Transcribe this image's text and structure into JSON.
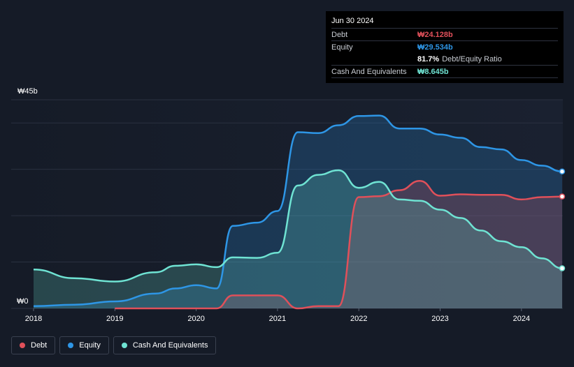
{
  "tooltip": {
    "date": "Jun 30 2024",
    "rows": [
      {
        "label": "Debt",
        "value": "₩24.128b",
        "color": "#e0505a"
      },
      {
        "label": "Equity",
        "value": "₩29.534b",
        "color": "#2e96e6"
      },
      {
        "label": "",
        "value": "81.7%",
        "extra": "Debt/Equity Ratio",
        "color": "#ffffff"
      },
      {
        "label": "Cash And Equivalents",
        "value": "₩8.645b",
        "color": "#6fe3d3"
      }
    ]
  },
  "legend": [
    {
      "label": "Debt",
      "color": "#e0505a"
    },
    {
      "label": "Equity",
      "color": "#2e96e6"
    },
    {
      "label": "Cash And Equivalents",
      "color": "#6fe3d3"
    }
  ],
  "chart_data": {
    "type": "area",
    "y_top_label": "₩45b",
    "y_bottom_label": "₩0",
    "ylim": [
      0,
      45
    ],
    "xlim": [
      2018.0,
      2024.5
    ],
    "x_ticks": [
      "2018",
      "2019",
      "2020",
      "2021",
      "2022",
      "2023",
      "2024"
    ],
    "grid": true,
    "series": [
      {
        "name": "Debt",
        "color": "#e0505a",
        "points": [
          [
            2019.0,
            0
          ],
          [
            2020.25,
            0
          ],
          [
            2020.45,
            2.8
          ],
          [
            2020.75,
            2.8
          ],
          [
            2021.0,
            2.8
          ],
          [
            2021.25,
            0
          ],
          [
            2021.5,
            0.5
          ],
          [
            2021.75,
            0.5
          ],
          [
            2022.0,
            24.0
          ],
          [
            2022.25,
            24.2
          ],
          [
            2022.5,
            25.5
          ],
          [
            2022.75,
            27.5
          ],
          [
            2023.0,
            24.3
          ],
          [
            2023.25,
            24.6
          ],
          [
            2023.5,
            24.5
          ],
          [
            2023.75,
            24.5
          ],
          [
            2024.0,
            23.5
          ],
          [
            2024.25,
            24.0
          ],
          [
            2024.5,
            24.128
          ]
        ]
      },
      {
        "name": "Equity",
        "color": "#2e96e6",
        "points": [
          [
            2018.0,
            0.5
          ],
          [
            2018.5,
            0.8
          ],
          [
            2019.0,
            1.5
          ],
          [
            2019.5,
            3.2
          ],
          [
            2019.75,
            4.3
          ],
          [
            2020.0,
            5.0
          ],
          [
            2020.25,
            4.3
          ],
          [
            2020.45,
            17.8
          ],
          [
            2020.75,
            18.5
          ],
          [
            2021.0,
            21.0
          ],
          [
            2021.25,
            38.0
          ],
          [
            2021.5,
            37.8
          ],
          [
            2021.75,
            39.5
          ],
          [
            2022.0,
            41.5
          ],
          [
            2022.25,
            41.6
          ],
          [
            2022.5,
            38.8
          ],
          [
            2022.75,
            38.8
          ],
          [
            2023.0,
            37.5
          ],
          [
            2023.25,
            36.8
          ],
          [
            2023.5,
            34.8
          ],
          [
            2023.75,
            34.3
          ],
          [
            2024.0,
            32.0
          ],
          [
            2024.25,
            30.8
          ],
          [
            2024.5,
            29.534
          ]
        ]
      },
      {
        "name": "Cash And Equivalents",
        "color": "#6fe3d3",
        "points": [
          [
            2018.0,
            8.4
          ],
          [
            2018.5,
            6.5
          ],
          [
            2019.0,
            5.8
          ],
          [
            2019.5,
            7.8
          ],
          [
            2019.75,
            9.2
          ],
          [
            2020.0,
            9.5
          ],
          [
            2020.25,
            8.9
          ],
          [
            2020.45,
            11.0
          ],
          [
            2020.75,
            10.9
          ],
          [
            2021.0,
            12.0
          ],
          [
            2021.25,
            26.5
          ],
          [
            2021.5,
            28.8
          ],
          [
            2021.75,
            29.8
          ],
          [
            2022.0,
            26.0
          ],
          [
            2022.25,
            27.3
          ],
          [
            2022.5,
            23.5
          ],
          [
            2022.75,
            23.2
          ],
          [
            2023.0,
            21.3
          ],
          [
            2023.25,
            19.5
          ],
          [
            2023.5,
            16.8
          ],
          [
            2023.75,
            14.5
          ],
          [
            2024.0,
            13.2
          ],
          [
            2024.25,
            10.8
          ],
          [
            2024.5,
            8.645
          ]
        ]
      }
    ]
  }
}
